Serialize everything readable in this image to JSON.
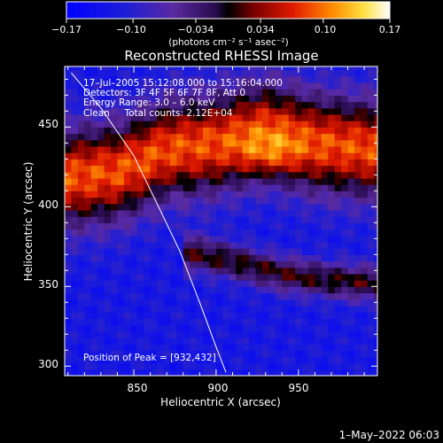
{
  "chart_data": {
    "type": "heatmap",
    "title": "Reconstructed RHESSI Image",
    "xlabel": "Heliocentric X (arcsec)",
    "ylabel": "Heliocentric Y (arcsec)",
    "xlim": [
      808,
      998
    ],
    "ylim": [
      294,
      488
    ],
    "x_ticks": [
      850,
      900,
      950
    ],
    "y_ticks": [
      300,
      350,
      400,
      450
    ],
    "colorbar": {
      "min": -0.17,
      "max": 0.17,
      "ticks": [
        -0.17,
        -0.1,
        -0.034,
        0.034,
        0.1,
        0.17
      ],
      "tick_labels": [
        "−0.17",
        "−0.10",
        "−0.034",
        "0.034",
        "0.10",
        "0.17"
      ],
      "unit_label": "(photons cm⁻² s⁻¹ asec⁻²)"
    },
    "annotations": [
      "17–Jul–2005 15:12:08.000 to 15:16:04.000",
      "Detectors: 3F 4F 5F 6F 7F 8F, Att 0",
      "Energy Range: 3.0 – 6.0 keV",
      "Clean     Total counts: 2.12E+04"
    ],
    "peak_label": "Position of Peak = [932,432]",
    "peak": [
      932,
      432
    ],
    "limb_curve": [
      [
        812,
        484
      ],
      [
        830,
        462
      ],
      [
        850,
        432
      ],
      [
        865,
        400
      ],
      [
        878,
        372
      ],
      [
        890,
        340
      ],
      [
        900,
        312
      ],
      [
        906,
        296
      ]
    ],
    "bands": [
      {
        "name": "bright",
        "center": [
          [
            808,
            418
          ],
          [
            840,
            422
          ],
          [
            870,
            436
          ],
          [
            900,
            440
          ],
          [
            930,
            448
          ],
          [
            960,
            440
          ],
          [
            998,
            436
          ]
        ],
        "amp": 0.17,
        "width": 30
      },
      {
        "name": "arc",
        "center": [
          [
            880,
            372
          ],
          [
            910,
            366
          ],
          [
            940,
            358
          ],
          [
            970,
            354
          ],
          [
            998,
            352
          ]
        ],
        "amp": 0.09,
        "width": 11
      }
    ],
    "background": -0.12
  },
  "footer": {
    "date": "1–May–2022 06:03"
  }
}
